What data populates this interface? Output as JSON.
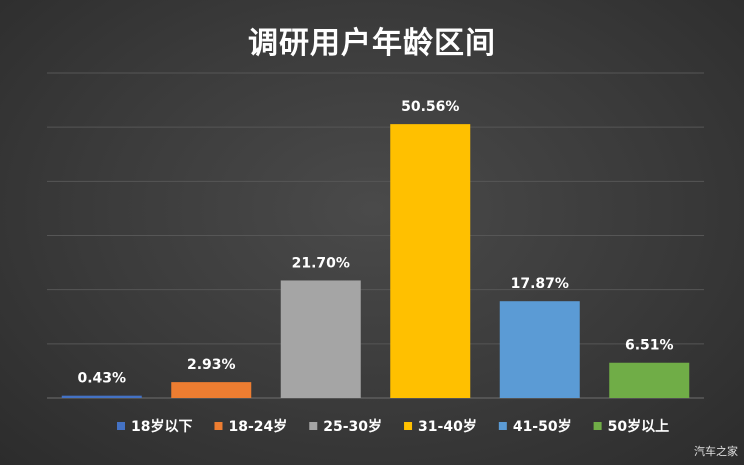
{
  "chart_data": {
    "type": "bar",
    "title": "调研用户年龄区间",
    "categories": [
      "18岁以下",
      "18-24岁",
      "25-30岁",
      "31-40岁",
      "41-50岁",
      "50岁以上"
    ],
    "values": [
      0.43,
      2.93,
      21.7,
      50.56,
      17.87,
      6.51
    ],
    "data_labels": [
      "0.43%",
      "2.93%",
      "21.70%",
      "50.56%",
      "17.87%",
      "6.51%"
    ],
    "unit": "%",
    "colors": [
      "#4472c4",
      "#ed7d31",
      "#a5a5a5",
      "#ffc000",
      "#5b9bd5",
      "#70ad47"
    ],
    "ylim": [
      0,
      60
    ],
    "grid": true,
    "legend_position": "bottom",
    "xlabel": "",
    "ylabel": ""
  },
  "watermark": "汽车之家"
}
